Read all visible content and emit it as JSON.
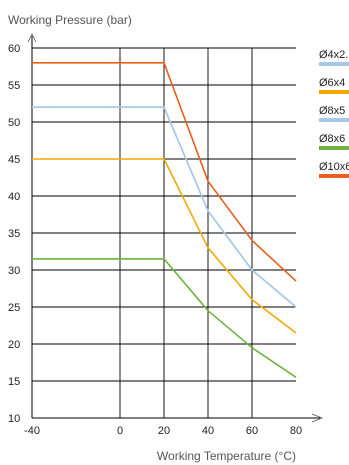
{
  "chart_data": {
    "type": "line",
    "ylabel": "Working Pressure (bar)",
    "xlabel": "Working Temperature (°C)",
    "xlim": [
      -40,
      80
    ],
    "ylim": [
      10,
      60
    ],
    "x_ticks": [
      -40,
      0,
      20,
      40,
      60,
      80
    ],
    "y_ticks": [
      10,
      15,
      20,
      25,
      30,
      35,
      40,
      45,
      50,
      55,
      60
    ],
    "grid": true,
    "legend_position": "right",
    "series": [
      {
        "name": "Ø4x2.",
        "color": "#a8c8e8",
        "x": [
          -40,
          20,
          40,
          60,
          80
        ],
        "y": [
          52,
          52,
          38,
          30,
          25
        ]
      },
      {
        "name": "Ø6x4",
        "color": "#f5a800",
        "x": [
          -40,
          20,
          40,
          60,
          80
        ],
        "y": [
          45,
          45,
          33,
          26,
          21.5
        ]
      },
      {
        "name": "Ø8x5",
        "color": "#a8c8e8",
        "x": [
          -40,
          20,
          40,
          60,
          80
        ],
        "y": [
          52,
          52,
          38,
          30,
          25
        ]
      },
      {
        "name": "Ø8x6",
        "color": "#6db33f",
        "x": [
          -40,
          20,
          40,
          60,
          80
        ],
        "y": [
          31.5,
          31.5,
          24.5,
          19.5,
          15.5
        ]
      },
      {
        "name": "Ø10x6",
        "color": "#e8601c",
        "x": [
          -40,
          20,
          40,
          60,
          80
        ],
        "y": [
          58,
          58,
          42,
          34,
          28.5
        ]
      }
    ]
  }
}
